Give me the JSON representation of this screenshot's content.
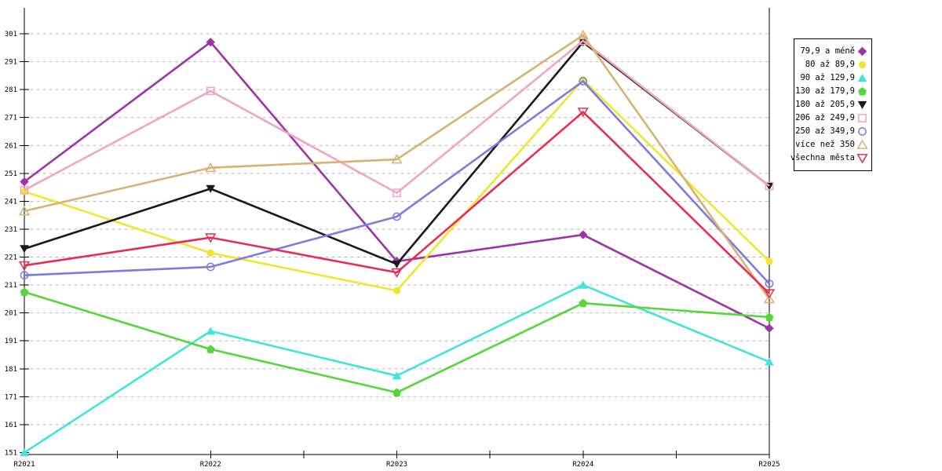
{
  "chart_data": {
    "type": "line",
    "title": "",
    "xlabel": "",
    "ylabel": "",
    "x_categories": [
      "R2021",
      "R2022",
      "R2023",
      "R2024",
      "R2025"
    ],
    "y_axis": {
      "min": 151,
      "max": 301,
      "tick_step": 10,
      "tick_labels": [
        "151",
        "161",
        "171",
        "181",
        "191",
        "201",
        "211",
        "221",
        "231",
        "241",
        "251",
        "261",
        "271",
        "281",
        "291",
        "301"
      ]
    },
    "grid": "horizontal-dashed",
    "grid_color": "#b4b4b4",
    "axis_color": "#000000",
    "legend_position": "right",
    "series": [
      {
        "name": "79,9 a méně",
        "color": "#9c33a8",
        "marker": "diamond",
        "marker_style": "filled",
        "values": [
          248,
          298,
          219.5,
          229,
          195.5
        ]
      },
      {
        "name": "80 až 89,9",
        "color": "#f0e62e",
        "marker": "circle",
        "marker_style": "filled",
        "values": [
          244.5,
          222.5,
          209,
          284.5,
          219.5
        ]
      },
      {
        "name": "90 až 129,9",
        "color": "#3fe4da",
        "marker": "triangle-up",
        "marker_style": "filled",
        "values": [
          151,
          194.5,
          178.5,
          211,
          183.5
        ]
      },
      {
        "name": "130 až 179,9",
        "color": "#55d639",
        "marker": "pentagon",
        "marker_style": "filled",
        "values": [
          208.5,
          188,
          172.5,
          204.5,
          199.5
        ]
      },
      {
        "name": "180 až 205,9",
        "color": "#18181f",
        "marker": "triangle-down",
        "marker_style": "filled",
        "values": [
          224,
          245.5,
          218.5,
          298,
          246.5
        ]
      },
      {
        "name": "206 až 249,9",
        "color": "#f0a6bc",
        "marker": "square",
        "marker_style": "open",
        "values": [
          245,
          280.5,
          244,
          298.5,
          246.5
        ]
      },
      {
        "name": "250 až 349,9",
        "color": "#7b7be0",
        "marker": "circle",
        "marker_style": "open",
        "values": [
          214.5,
          217.5,
          235.5,
          284,
          211.5
        ]
      },
      {
        "name": "více než 350",
        "color": "#d8b173",
        "marker": "triangle-up",
        "marker_style": "open",
        "values": [
          237.5,
          253,
          256,
          300.5,
          206
        ]
      },
      {
        "name": "všechna města",
        "color": "#e82d52",
        "marker": "triangle-down",
        "marker_style": "open",
        "values": [
          218,
          228,
          215.5,
          273,
          208
        ]
      }
    ]
  }
}
